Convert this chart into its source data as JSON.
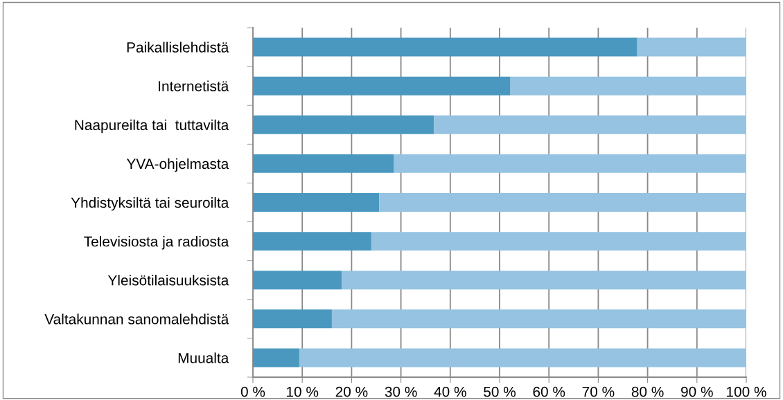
{
  "chart_data": {
    "type": "bar",
    "orientation": "horizontal",
    "stacked": true,
    "categories": [
      "Paikallislehdistä",
      "Internetistä",
      "Naapureilta tai  tuttavilta",
      "YVA-ohjelmasta",
      "Yhdistyksiltä tai seuroilta",
      "Televisiosta ja radiosta",
      "Yleisötilaisuuksista",
      "Valtakunnan sanomalehdistä",
      "Muualta"
    ],
    "series": [
      {
        "color": "#4a98bf",
        "values": [
          77.9,
          52.2,
          36.7,
          28.6,
          25.6,
          24.0,
          18.0,
          16.0,
          9.4
        ]
      },
      {
        "color": "#95c3e1",
        "values": [
          22.1,
          47.8,
          63.3,
          71.4,
          74.4,
          76.0,
          82.0,
          84.0,
          90.6
        ]
      }
    ],
    "xlim": [
      0,
      100
    ],
    "xticks": [
      {
        "value": 0,
        "label": "0 %"
      },
      {
        "value": 10,
        "label": "10 %"
      },
      {
        "value": 20,
        "label": "20 %"
      },
      {
        "value": 30,
        "label": "30 %"
      },
      {
        "value": 40,
        "label": "40 %"
      },
      {
        "value": 50,
        "label": "50 %"
      },
      {
        "value": 60,
        "label": "60 %"
      },
      {
        "value": 70,
        "label": "70 %"
      },
      {
        "value": 80,
        "label": "80 %"
      },
      {
        "value": 90,
        "label": "90 %"
      },
      {
        "value": 100,
        "label": "100 %"
      }
    ],
    "grid": "x"
  }
}
